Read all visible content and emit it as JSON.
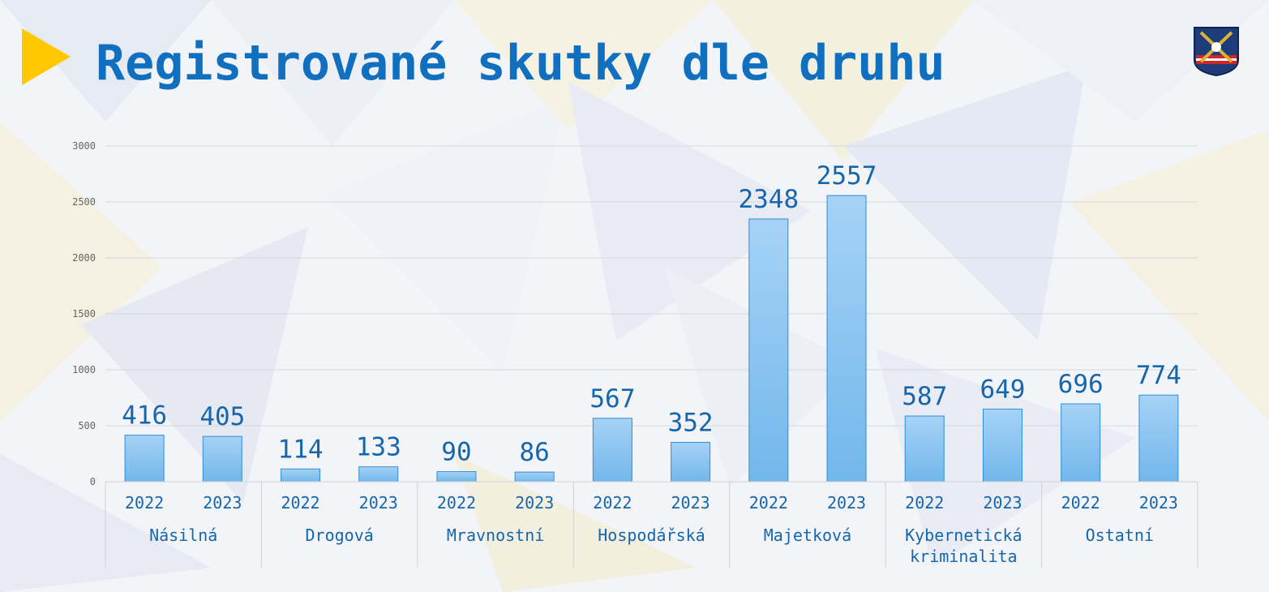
{
  "title": "Registrované skutky dle druhu",
  "emblem_icon": "police-emblem-icon",
  "colors": {
    "accent": "#ffc800",
    "title": "#1070bf",
    "bar_top": "#a6d2f6",
    "bar_bottom": "#72b7eb",
    "bar_stroke": "#2f8fd4",
    "label": "#1566ad"
  },
  "chart_data": {
    "type": "bar",
    "title": "Registrované skutky dle druhu",
    "xlabel": "",
    "ylabel": "",
    "ylim": [
      0,
      3000
    ],
    "yticks": [
      0,
      500,
      1000,
      1500,
      2000,
      2500,
      3000
    ],
    "grid": true,
    "legend": "none",
    "groups": [
      {
        "category": "Násilná",
        "years": [
          "2022",
          "2023"
        ],
        "values": [
          416,
          405
        ]
      },
      {
        "category": "Drogová",
        "years": [
          "2022",
          "2023"
        ],
        "values": [
          114,
          133
        ]
      },
      {
        "category": "Mravnostní",
        "years": [
          "2022",
          "2023"
        ],
        "values": [
          90,
          86
        ]
      },
      {
        "category": "Hospodářská",
        "years": [
          "2022",
          "2023"
        ],
        "values": [
          567,
          352
        ]
      },
      {
        "category": "Majetková",
        "years": [
          "2022",
          "2023"
        ],
        "values": [
          2348,
          2557
        ]
      },
      {
        "category": "Kybernetická kriminalita",
        "years": [
          "2022",
          "2023"
        ],
        "values": [
          587,
          649
        ]
      },
      {
        "category": "Ostatní",
        "years": [
          "2022",
          "2023"
        ],
        "values": [
          696,
          774
        ]
      }
    ]
  }
}
